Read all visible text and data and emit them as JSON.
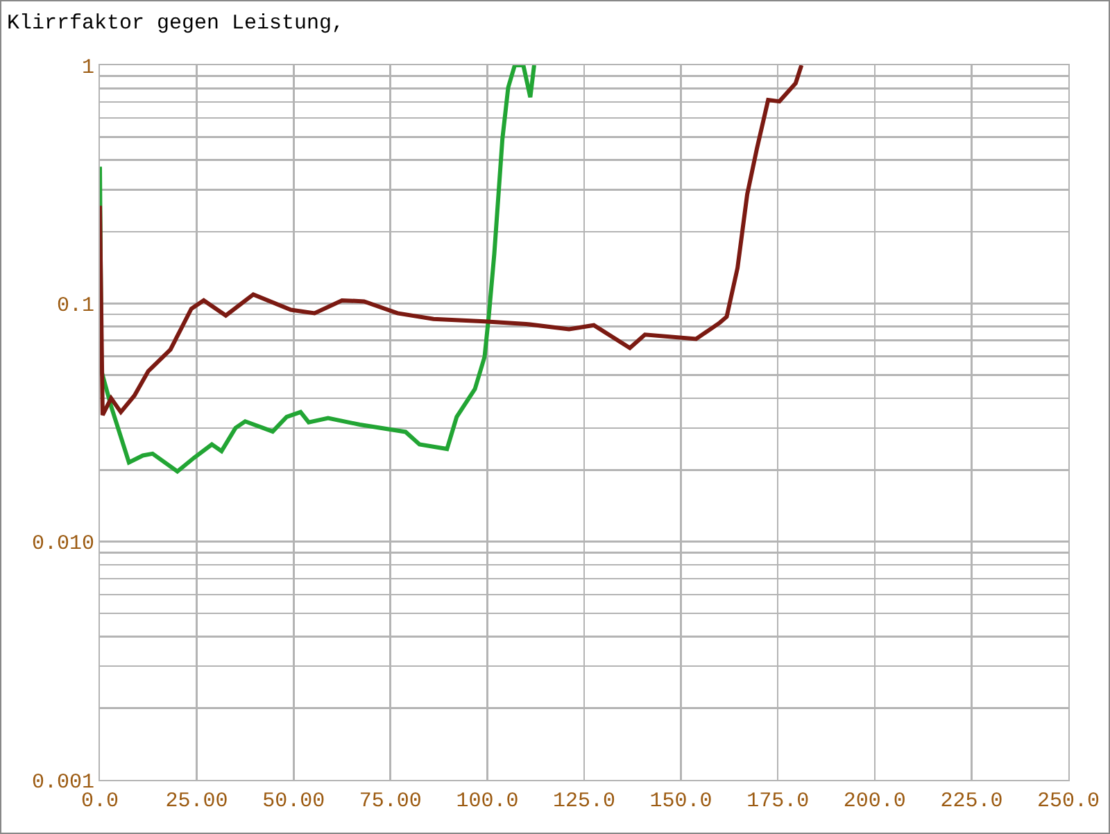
{
  "chart_data": {
    "type": "line",
    "title": "Klirrfaktor gegen Leistung,",
    "log": "y",
    "grid": true,
    "marker": "none",
    "line_style": "solid",
    "xlim": [
      0,
      250
    ],
    "xticks": [
      {
        "value": 0,
        "label": "0.0"
      },
      {
        "value": 25,
        "label": "25.00"
      },
      {
        "value": 50,
        "label": "50.00"
      },
      {
        "value": 75,
        "label": "75.00"
      },
      {
        "value": 100,
        "label": "100.0"
      },
      {
        "value": 125,
        "label": "125.0"
      },
      {
        "value": 150,
        "label": "150.0"
      },
      {
        "value": 175,
        "label": "175.0"
      },
      {
        "value": 200,
        "label": "200.0"
      },
      {
        "value": 225,
        "label": "225.0"
      },
      {
        "value": 250,
        "label": "250.0"
      }
    ],
    "ylim": [
      0.001,
      1
    ],
    "yticks": [
      0.001,
      {
        "value": 0.002,
        "label": null
      },
      {
        "value": 0.003,
        "label": null
      },
      {
        "value": 0.004,
        "label": null
      },
      {
        "value": 0.005,
        "label": null
      },
      {
        "value": 0.006,
        "label": null
      },
      {
        "value": 0.007,
        "label": null
      },
      {
        "value": 0.008,
        "label": null
      },
      {
        "value": 0.009,
        "label": null
      },
      {
        "value": 0.01,
        "label": "0.010"
      },
      {
        "value": 0.02,
        "label": null
      },
      {
        "value": 0.03,
        "label": null
      },
      {
        "value": 0.04,
        "label": null
      },
      {
        "value": 0.05,
        "label": null
      },
      {
        "value": 0.06,
        "label": null
      },
      {
        "value": 0.07,
        "label": null
      },
      {
        "value": 0.08,
        "label": null
      },
      {
        "value": 0.09,
        "label": null
      },
      0.1,
      {
        "value": 0.2,
        "label": null
      },
      {
        "value": 0.3,
        "label": null
      },
      {
        "value": 0.4,
        "label": null
      },
      {
        "value": 0.5,
        "label": null
      },
      {
        "value": 0.6,
        "label": null
      },
      {
        "value": 0.7,
        "label": null
      },
      {
        "value": 0.8,
        "label": null
      },
      {
        "value": 0.9,
        "label": null
      },
      1
    ],
    "series": [
      {
        "color": "#7b1a12",
        "x": [
          0,
          0.7,
          2.9,
          5.4,
          8.9,
          12.5,
          18.2,
          23.6,
          26.8,
          32.5,
          39.6,
          49.3,
          55.4,
          62.5,
          68.2,
          76.8,
          86.1,
          99.3,
          110,
          121.1,
          127.5,
          136.8,
          140.7,
          153.9,
          160,
          161.8,
          164.6,
          167.1,
          169.6,
          172.5,
          175.4,
          179.6,
          181.1
        ],
        "values": [
          0.257,
          0.034,
          0.04,
          0.035,
          0.041,
          0.052,
          0.064,
          0.095,
          0.103,
          0.089,
          0.109,
          0.094,
          0.091,
          0.103,
          0.102,
          0.091,
          0.086,
          0.084,
          0.082,
          0.078,
          0.081,
          0.065,
          0.074,
          0.071,
          0.083,
          0.088,
          0.141,
          0.287,
          0.447,
          0.715,
          0.705,
          0.84,
          1.0
        ]
      },
      {
        "color": "#22a534",
        "x": [
          0,
          0.4,
          2.9,
          7.5,
          11.1,
          13.6,
          20,
          24.3,
          28.9,
          31.4,
          35,
          37.5,
          44.6,
          48.2,
          51.8,
          53.9,
          58.9,
          67.1,
          78.9,
          82.5,
          89.6,
          92.1,
          96.8,
          99.3,
          100.4,
          101.8,
          103.9,
          105.4,
          107.1,
          109.3,
          111.1,
          112.1
        ],
        "values": [
          0.375,
          0.052,
          0.037,
          0.0215,
          0.023,
          0.0234,
          0.0197,
          0.0225,
          0.0256,
          0.024,
          0.03,
          0.032,
          0.029,
          0.0334,
          0.035,
          0.0317,
          0.033,
          0.031,
          0.0289,
          0.0256,
          0.0245,
          0.0334,
          0.0437,
          0.0597,
          0.089,
          0.161,
          0.49,
          0.807,
          1.0,
          1.0,
          0.734,
          1.0
        ]
      }
    ]
  }
}
